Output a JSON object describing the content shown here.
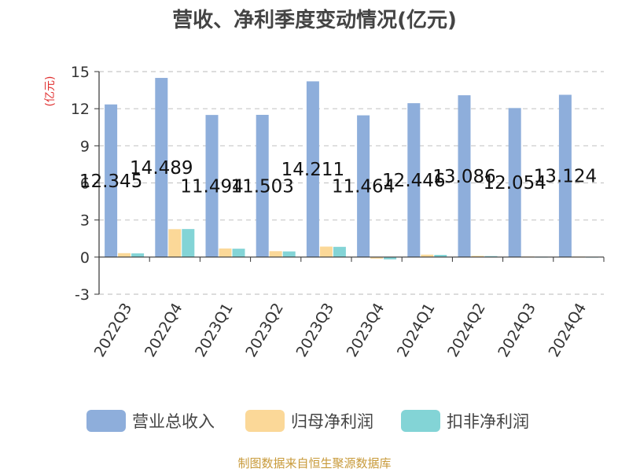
{
  "chart_data": {
    "type": "bar",
    "title": "营收、净利季度变动情况(亿元)",
    "unit_label": "(亿元)",
    "categories": [
      "2022Q3",
      "2022Q4",
      "2023Q1",
      "2023Q2",
      "2023Q3",
      "2023Q4",
      "2024Q1",
      "2024Q2",
      "2024Q3",
      "2024Q4"
    ],
    "series": [
      {
        "name": "营业总收入",
        "color": "#8eaedb",
        "values": [
          12.345,
          14.489,
          11.494,
          11.503,
          14.211,
          11.464,
          12.446,
          13.086,
          12.054,
          13.124
        ]
      },
      {
        "name": "归母净利润",
        "color": "#fbd898",
        "values": [
          0.32,
          2.26,
          0.7,
          0.48,
          0.85,
          -0.12,
          0.2,
          0.1,
          0.05,
          0.04
        ]
      },
      {
        "name": "扣非净利润",
        "color": "#83d4d6",
        "values": [
          0.3,
          2.27,
          0.68,
          0.46,
          0.83,
          -0.18,
          0.18,
          0.08,
          0.03,
          0.02
        ]
      }
    ],
    "data_labels": [
      "12.345",
      "14.489",
      "11.494",
      "11.503",
      "14.211",
      "11.464",
      "12.446",
      "13.086",
      "12.054",
      "13.124"
    ],
    "y_ticks": [
      "15",
      "12",
      "9",
      "6",
      "3",
      "0",
      "-3"
    ],
    "ylim": [
      -3,
      15
    ],
    "grid": true,
    "legend_position": "bottom",
    "source": "制图数据来自恒生聚源数据库"
  }
}
